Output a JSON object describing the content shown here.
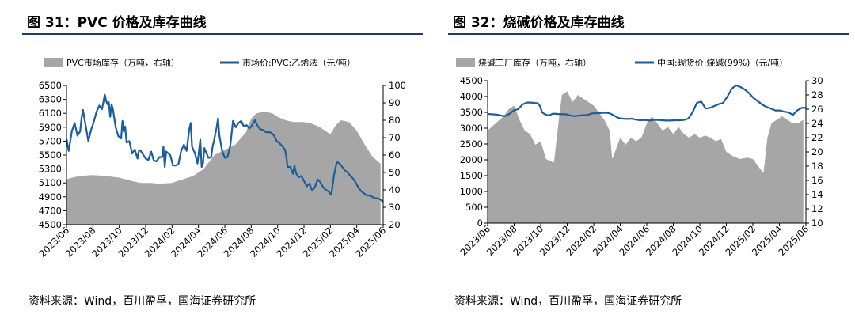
{
  "charts": [
    {
      "title": "图 31：PVC 价格及库存曲线",
      "source": "资料来源：Wind，百川盈孚，国海证券研究所",
      "legend": {
        "area": "PVC市场库存（万吨，右轴）",
        "line": "市场价:PVC:乙烯法（元/吨）"
      },
      "colors": {
        "area": "#a6a6a6",
        "line": "#1a5e9c"
      },
      "x_ticks": [
        "2023/06",
        "2023/08",
        "2023/10",
        "2023/12",
        "2024/02",
        "2024/04",
        "2024/06",
        "2024/08",
        "2024/10",
        "2024/12",
        "2025/02",
        "2025/04",
        "2025/06"
      ],
      "left_ticks": [
        4500,
        4700,
        4900,
        5100,
        5300,
        5500,
        5700,
        5900,
        6100,
        6300,
        6500
      ],
      "right_ticks": [
        20,
        30,
        40,
        50,
        60,
        70,
        80,
        90,
        100
      ],
      "ylim_left": [
        4500,
        6500
      ],
      "ylim_right": [
        20,
        100
      ],
      "inventory": [
        [
          0,
          46
        ],
        [
          0.2,
          47
        ],
        [
          0.5,
          48
        ],
        [
          1,
          48.5
        ],
        [
          1.5,
          48
        ],
        [
          2,
          47
        ],
        [
          2.5,
          45
        ],
        [
          2.8,
          44
        ],
        [
          3.2,
          44
        ],
        [
          3.5,
          43.5
        ],
        [
          4,
          44
        ],
        [
          4.4,
          46
        ],
        [
          4.8,
          48
        ],
        [
          5.2,
          52
        ],
        [
          5.6,
          60
        ],
        [
          6,
          63
        ],
        [
          6.4,
          66
        ],
        [
          6.8,
          73
        ],
        [
          7,
          81
        ],
        [
          7.2,
          84
        ],
        [
          7.5,
          85
        ],
        [
          7.8,
          84
        ],
        [
          8,
          82
        ],
        [
          8.3,
          80
        ],
        [
          8.6,
          79
        ],
        [
          9,
          79
        ],
        [
          9.3,
          78
        ],
        [
          9.6,
          76
        ],
        [
          9.8,
          74
        ],
        [
          10,
          72
        ],
        [
          10.2,
          77
        ],
        [
          10.4,
          80
        ],
        [
          10.7,
          79
        ],
        [
          11,
          74
        ],
        [
          11.3,
          66
        ],
        [
          11.6,
          59
        ],
        [
          11.9,
          55
        ]
      ],
      "price": [
        [
          0,
          5730
        ],
        [
          0.08,
          5560
        ],
        [
          0.2,
          5850
        ],
        [
          0.3,
          5960
        ],
        [
          0.4,
          5780
        ],
        [
          0.5,
          5840
        ],
        [
          0.55,
          6030
        ],
        [
          0.6,
          6150
        ],
        [
          0.7,
          5930
        ],
        [
          0.8,
          5700
        ],
        [
          0.9,
          5860
        ],
        [
          1.0,
          5980
        ],
        [
          1.1,
          6120
        ],
        [
          1.2,
          6210
        ],
        [
          1.3,
          6160
        ],
        [
          1.35,
          6260
        ],
        [
          1.4,
          6370
        ],
        [
          1.45,
          6280
        ],
        [
          1.5,
          6230
        ],
        [
          1.55,
          6260
        ],
        [
          1.6,
          6050
        ],
        [
          1.65,
          6230
        ],
        [
          1.7,
          6160
        ],
        [
          1.8,
          5900
        ],
        [
          1.9,
          5770
        ],
        [
          2.0,
          5740
        ],
        [
          2.05,
          5990
        ],
        [
          2.1,
          5840
        ],
        [
          2.15,
          5910
        ],
        [
          2.2,
          5680
        ],
        [
          2.3,
          5700
        ],
        [
          2.35,
          5620
        ],
        [
          2.4,
          5520
        ],
        [
          2.5,
          5580
        ],
        [
          2.6,
          5450
        ],
        [
          2.65,
          5560
        ],
        [
          2.7,
          5570
        ],
        [
          2.8,
          5510
        ],
        [
          2.9,
          5450
        ],
        [
          3.0,
          5430
        ],
        [
          3.1,
          5550
        ],
        [
          3.2,
          5420
        ],
        [
          3.3,
          5410
        ],
        [
          3.4,
          5470
        ],
        [
          3.5,
          5470
        ],
        [
          3.55,
          5620
        ],
        [
          3.6,
          5330
        ],
        [
          3.65,
          5550
        ],
        [
          3.8,
          5500
        ],
        [
          3.9,
          5350
        ],
        [
          4.0,
          5350
        ],
        [
          4.1,
          5370
        ],
        [
          4.2,
          5560
        ],
        [
          4.3,
          5650
        ],
        [
          4.4,
          5560
        ],
        [
          4.5,
          5880
        ],
        [
          4.55,
          5960
        ],
        [
          4.6,
          5620
        ],
        [
          4.7,
          5530
        ],
        [
          4.8,
          5380
        ],
        [
          4.9,
          5720
        ],
        [
          4.95,
          5330
        ],
        [
          5.0,
          5380
        ],
        [
          5.05,
          5600
        ],
        [
          5.2,
          5460
        ],
        [
          5.3,
          5470
        ],
        [
          5.35,
          5620
        ],
        [
          5.4,
          5700
        ],
        [
          5.5,
          5900
        ],
        [
          5.55,
          6030
        ],
        [
          5.6,
          5780
        ],
        [
          5.7,
          5560
        ],
        [
          5.8,
          5460
        ],
        [
          5.9,
          5470
        ],
        [
          6.0,
          5640
        ],
        [
          6.1,
          5990
        ],
        [
          6.2,
          5900
        ],
        [
          6.3,
          5960
        ],
        [
          6.4,
          5990
        ],
        [
          6.5,
          5910
        ],
        [
          6.6,
          5930
        ],
        [
          6.7,
          5880
        ],
        [
          6.8,
          5930
        ],
        [
          6.9,
          6000
        ],
        [
          7.0,
          5920
        ],
        [
          7.1,
          5870
        ],
        [
          7.2,
          5860
        ],
        [
          7.3,
          5830
        ],
        [
          7.4,
          5830
        ],
        [
          7.5,
          5820
        ],
        [
          7.6,
          5780
        ],
        [
          7.7,
          5700
        ],
        [
          7.8,
          5670
        ],
        [
          7.9,
          5630
        ],
        [
          8.0,
          5580
        ],
        [
          8.05,
          5480
        ],
        [
          8.1,
          5330
        ],
        [
          8.2,
          5330
        ],
        [
          8.3,
          5230
        ],
        [
          8.35,
          5350
        ],
        [
          8.4,
          5250
        ],
        [
          8.5,
          5180
        ],
        [
          8.6,
          5200
        ],
        [
          8.7,
          5130
        ],
        [
          8.8,
          5050
        ],
        [
          8.9,
          5090
        ],
        [
          9.0,
          4990
        ],
        [
          9.1,
          5040
        ],
        [
          9.2,
          5150
        ],
        [
          9.3,
          5110
        ],
        [
          9.4,
          5040
        ],
        [
          9.5,
          5000
        ],
        [
          9.6,
          4980
        ],
        [
          9.7,
          4930
        ],
        [
          9.8,
          5210
        ],
        [
          9.9,
          5400
        ],
        [
          10.0,
          5380
        ],
        [
          10.1,
          5330
        ],
        [
          10.2,
          5280
        ],
        [
          10.3,
          5250
        ],
        [
          10.4,
          5200
        ],
        [
          10.5,
          5160
        ],
        [
          10.6,
          5100
        ],
        [
          10.7,
          5030
        ],
        [
          10.8,
          4980
        ],
        [
          10.9,
          4950
        ],
        [
          11.0,
          4920
        ],
        [
          11.1,
          4920
        ],
        [
          11.2,
          4900
        ],
        [
          11.3,
          4880
        ],
        [
          11.4,
          4880
        ],
        [
          11.5,
          4860
        ],
        [
          11.6,
          4830
        ]
      ]
    },
    {
      "title": "图 32：烧碱价格及库存曲线",
      "source": "资料来源：Wind，百川盈孚，国海证券研究所",
      "legend": {
        "area": "烧碱工厂库存（万吨，右轴）",
        "line": "中国:现货价:烧碱(99%)（元/吨）"
      },
      "colors": {
        "area": "#a6a6a6",
        "line": "#1a5e9c"
      },
      "x_ticks": [
        "2023/06",
        "2023/08",
        "2023/10",
        "2023/12",
        "2024/02",
        "2024/04",
        "2024/06",
        "2024/08",
        "2024/10",
        "2024/12",
        "2025/02",
        "2025/04",
        "2025/06"
      ],
      "left_ticks": [
        0,
        500,
        1000,
        1500,
        2000,
        2500,
        3000,
        3500,
        4000,
        4500
      ],
      "right_ticks": [
        10,
        12,
        14,
        16,
        18,
        20,
        22,
        24,
        26,
        28,
        30
      ],
      "ylim_left": [
        0,
        4500
      ],
      "ylim_right": [
        10,
        30
      ],
      "inventory": [
        [
          0,
          23
        ],
        [
          0.3,
          24
        ],
        [
          0.6,
          25
        ],
        [
          0.8,
          26
        ],
        [
          1.0,
          26.5
        ],
        [
          1.2,
          24.5
        ],
        [
          1.4,
          23
        ],
        [
          1.6,
          22.5
        ],
        [
          1.8,
          21
        ],
        [
          2.0,
          21.5
        ],
        [
          2.2,
          19
        ],
        [
          2.5,
          18.5
        ],
        [
          2.7,
          25
        ],
        [
          2.8,
          28
        ],
        [
          3.0,
          28.5
        ],
        [
          3.2,
          27
        ],
        [
          3.4,
          28
        ],
        [
          3.6,
          27.5
        ],
        [
          3.8,
          27
        ],
        [
          4.0,
          26.5
        ],
        [
          4.2,
          25.5
        ],
        [
          4.4,
          24.5
        ],
        [
          4.6,
          23
        ],
        [
          4.7,
          19
        ],
        [
          4.8,
          20
        ],
        [
          5.0,
          22
        ],
        [
          5.2,
          21
        ],
        [
          5.4,
          22
        ],
        [
          5.6,
          21.5
        ],
        [
          5.8,
          22
        ],
        [
          6.0,
          24
        ],
        [
          6.2,
          25
        ],
        [
          6.4,
          24
        ],
        [
          6.6,
          23
        ],
        [
          6.8,
          23.5
        ],
        [
          7.0,
          22.5
        ],
        [
          7.2,
          23.5
        ],
        [
          7.4,
          22.5
        ],
        [
          7.6,
          22
        ],
        [
          7.8,
          22.5
        ],
        [
          8.0,
          22
        ],
        [
          8.2,
          22.3
        ],
        [
          8.4,
          22
        ],
        [
          8.6,
          21.5
        ],
        [
          8.8,
          21.8
        ],
        [
          9.0,
          20
        ],
        [
          9.2,
          19.5
        ],
        [
          9.5,
          19
        ],
        [
          9.8,
          19.2
        ],
        [
          10.0,
          19
        ],
        [
          10.2,
          18
        ],
        [
          10.4,
          17
        ],
        [
          10.55,
          22
        ],
        [
          10.7,
          24
        ],
        [
          10.9,
          24.5
        ],
        [
          11.1,
          25
        ],
        [
          11.3,
          24.5
        ],
        [
          11.5,
          24
        ],
        [
          11.7,
          24
        ],
        [
          11.9,
          24.5
        ]
      ],
      "price": [
        [
          0,
          3450
        ],
        [
          0.2,
          3440
        ],
        [
          0.4,
          3430
        ],
        [
          0.6,
          3400
        ],
        [
          0.8,
          3380
        ],
        [
          1.0,
          3450
        ],
        [
          1.2,
          3560
        ],
        [
          1.4,
          3600
        ],
        [
          1.6,
          3750
        ],
        [
          1.8,
          3810
        ],
        [
          2.0,
          3810
        ],
        [
          2.2,
          3790
        ],
        [
          2.3,
          3790
        ],
        [
          2.4,
          3700
        ],
        [
          2.5,
          3500
        ],
        [
          2.6,
          3450
        ],
        [
          2.8,
          3400
        ],
        [
          3.0,
          3460
        ],
        [
          3.2,
          3450
        ],
        [
          3.4,
          3440
        ],
        [
          3.6,
          3440
        ],
        [
          3.8,
          3400
        ],
        [
          4.0,
          3380
        ],
        [
          4.2,
          3400
        ],
        [
          4.4,
          3410
        ],
        [
          4.6,
          3420
        ],
        [
          4.8,
          3470
        ],
        [
          5.0,
          3470
        ],
        [
          5.2,
          3480
        ],
        [
          5.4,
          3490
        ],
        [
          5.6,
          3470
        ],
        [
          5.8,
          3400
        ],
        [
          6.0,
          3320
        ],
        [
          6.2,
          3300
        ],
        [
          6.4,
          3290
        ],
        [
          6.6,
          3300
        ],
        [
          6.8,
          3270
        ],
        [
          7.0,
          3250
        ],
        [
          7.2,
          3260
        ],
        [
          7.4,
          3240
        ],
        [
          7.6,
          3260
        ],
        [
          7.8,
          3260
        ],
        [
          8.0,
          3250
        ],
        [
          8.2,
          3240
        ],
        [
          8.4,
          3240
        ],
        [
          8.6,
          3250
        ],
        [
          8.8,
          3250
        ],
        [
          9.0,
          3260
        ],
        [
          9.2,
          3300
        ],
        [
          9.4,
          3500
        ],
        [
          9.6,
          3800
        ],
        [
          9.8,
          3840
        ],
        [
          10.0,
          3620
        ],
        [
          10.2,
          3640
        ],
        [
          10.4,
          3700
        ],
        [
          10.6,
          3760
        ],
        [
          10.8,
          3800
        ],
        [
          11.0,
          4000
        ],
        [
          11.2,
          4250
        ],
        [
          11.4,
          4350
        ],
        [
          11.6,
          4300
        ],
        [
          11.8,
          4220
        ],
        [
          12.0,
          4100
        ],
        [
          12.2,
          3950
        ],
        [
          12.4,
          3850
        ],
        [
          12.6,
          3740
        ],
        [
          12.8,
          3670
        ],
        [
          13.0,
          3620
        ],
        [
          13.2,
          3560
        ],
        [
          13.4,
          3560
        ],
        [
          13.6,
          3520
        ],
        [
          13.8,
          3500
        ],
        [
          14.0,
          3420
        ],
        [
          14.2,
          3560
        ],
        [
          14.4,
          3640
        ],
        [
          14.6,
          3640
        ]
      ]
    }
  ]
}
